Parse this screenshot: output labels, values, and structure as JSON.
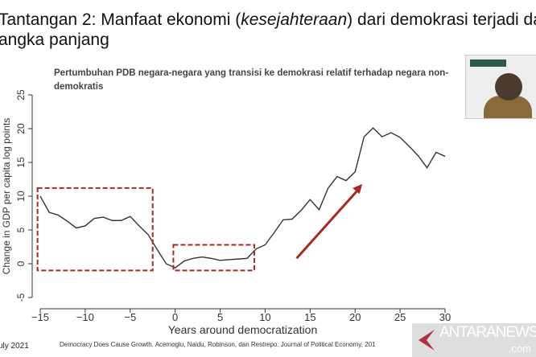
{
  "slide": {
    "title_line1_pre": "Tantangan 2: Manfaat ekonomi (",
    "title_line1_italic": "kesejahteraan",
    "title_line1_post": ") dari demokrasi terjadi da",
    "title_line2": "angka panjang",
    "footer_date": "uly 2021",
    "citation": "Democracy Does Cause Growth. Acemoglu, Naidu, Robinson, dan Restrepo. Journal of Political Economy, 201",
    "watermark": {
      "name": "ANTARANEWS",
      "suffix": ".com"
    }
  },
  "chart_data": {
    "type": "line",
    "title": "Pertumbuhan PDB negara-negara yang transisi ke demokrasi relatif terhadap negara non-demokratis",
    "xlabel": "Years around democratization",
    "ylabel": "Change in GDP per capita log points",
    "xlim": [
      -15,
      30
    ],
    "ylim": [
      -5,
      25
    ],
    "xticks": [
      -15,
      -10,
      -5,
      0,
      5,
      10,
      15,
      20,
      25,
      30
    ],
    "yticks": [
      -5,
      0,
      5,
      10,
      15,
      20,
      25
    ],
    "x": [
      -15,
      -14,
      -13,
      -12,
      -11,
      -10,
      -9,
      -8,
      -7,
      -6,
      -5,
      -4,
      -3,
      -2,
      -1,
      0,
      1,
      2,
      3,
      4,
      5,
      6,
      7,
      8,
      9,
      10,
      11,
      12,
      13,
      14,
      15,
      16,
      17,
      18,
      19,
      20,
      21,
      22,
      23,
      24,
      25,
      26,
      27,
      28,
      29,
      30
    ],
    "y": [
      10,
      7.6,
      7.2,
      6.3,
      5.3,
      5.6,
      6.7,
      6.9,
      6.4,
      6.4,
      7,
      5.6,
      4.3,
      2.1,
      0,
      -0.6,
      0.4,
      0.8,
      1.0,
      0.8,
      0.5,
      0.6,
      0.7,
      0.8,
      2.2,
      2.8,
      4.6,
      6.5,
      6.6,
      7.9,
      9.5,
      8.0,
      11.2,
      12.9,
      12.3,
      13.6,
      18.8,
      20.1,
      18.8,
      19.4,
      18.7,
      17.4,
      16.0,
      14.2,
      16.5,
      15.9
    ],
    "annotations": {
      "boxes": [
        {
          "x": [
            -15.3,
            -2.5
          ],
          "y": [
            -1,
            11.2
          ]
        },
        {
          "x": [
            -0.2,
            8.8
          ],
          "y": [
            -1,
            2.8
          ]
        }
      ],
      "arrow": {
        "from": [
          13.5,
          0.8
        ],
        "to": [
          20.8,
          11.8
        ]
      },
      "color": "#a52a24"
    },
    "line_color": "#333333"
  }
}
